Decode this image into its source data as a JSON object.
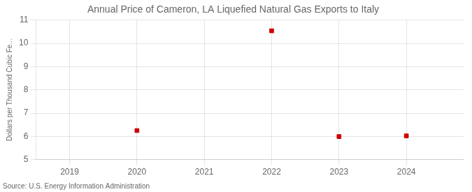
{
  "chart_data": {
    "type": "scatter",
    "title": "Annual Price of Cameron, LA Liquefied Natural Gas Exports to Italy",
    "ylabel": "Dollars per Thousand Cubic Fe...",
    "annotation": "Source: U.S. Energy Information Administration",
    "x": [
      2020,
      2022,
      2023,
      2024
    ],
    "values": [
      6.25,
      10.54,
      5.99,
      6.02
    ],
    "color": "#cc0000",
    "marker": "square",
    "xlim": [
      2018.5,
      2024.85
    ],
    "ylim": [
      5,
      11
    ],
    "xticks": [
      2019,
      2020,
      2021,
      2022,
      2023,
      2024
    ],
    "yticks": [
      5,
      6,
      7,
      8,
      9,
      10,
      11
    ],
    "grid": true
  }
}
